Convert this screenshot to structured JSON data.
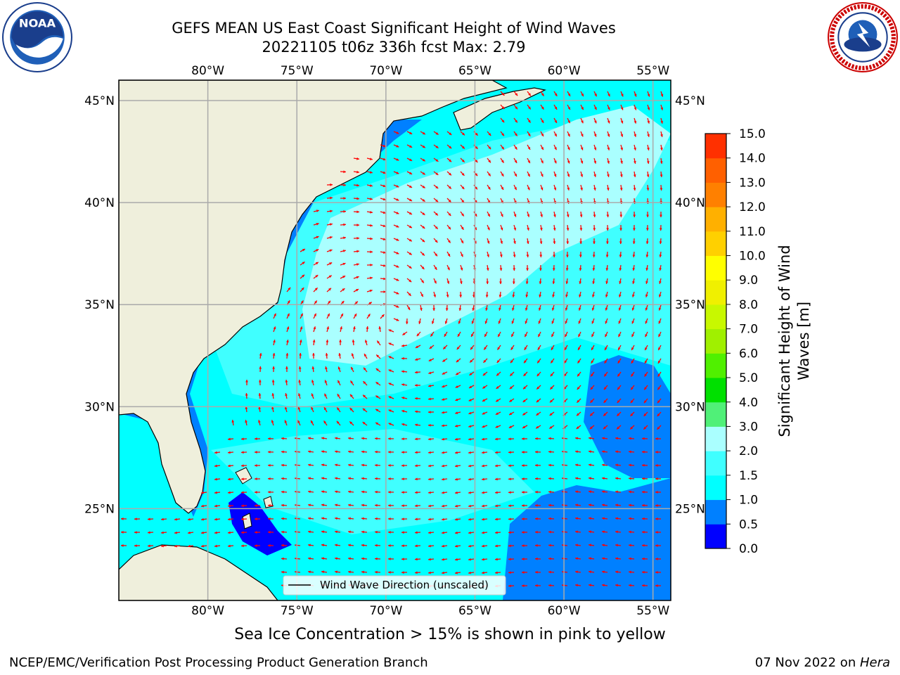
{
  "title": {
    "line1": "GEFS MEAN US East Coast Significant Height of Wind Waves",
    "line2": "20221105 t06z 336h fcst   Max: 2.79"
  },
  "logos": {
    "left": "noaa-logo",
    "left_text": "NOAA",
    "right": "nws-logo"
  },
  "map": {
    "lon_range": [
      -85,
      -54
    ],
    "lat_range": [
      20.5,
      46
    ],
    "lon_ticks": [
      -80,
      -75,
      -70,
      -65,
      -60,
      -55
    ],
    "lat_ticks": [
      25,
      30,
      35,
      40,
      45
    ],
    "lon_labels": [
      "80°W",
      "75°W",
      "70°W",
      "65°W",
      "60°W",
      "55°W"
    ],
    "lat_labels": [
      "25°N",
      "30°N",
      "35°N",
      "40°N",
      "45°N"
    ],
    "land_color": "#efefdc",
    "grid": true,
    "arrow_color": "#ff0000",
    "legend_label": "Wind Wave Direction (unscaled)"
  },
  "colorbar": {
    "ticks": [
      "0.0",
      "0.5",
      "1.0",
      "1.5",
      "2.0",
      "3.0",
      "4.0",
      "5.0",
      "6.0",
      "7.0",
      "8.0",
      "9.0",
      "10.0",
      "11.0",
      "12.0",
      "13.0",
      "14.0",
      "15.0"
    ],
    "colors": [
      "#0000ff",
      "#0080ff",
      "#00ffff",
      "#40ffff",
      "#aaffff",
      "#50f078",
      "#00e000",
      "#50f000",
      "#a0f000",
      "#c8f800",
      "#f0f000",
      "#ffff00",
      "#ffd000",
      "#ffb000",
      "#ff8000",
      "#ff6000",
      "#ff3000",
      "#ff0000"
    ],
    "label_line1": "Significant Height of Wind",
    "label_line2": "Waves [m]"
  },
  "footnote": "Sea Ice Concentration > 15% is shown in pink to yellow",
  "footer": {
    "left": "NCEP/EMC/Verification Post Processing Product Generation Branch",
    "right_date": "07 Nov 2022 on ",
    "right_host": "Hera"
  }
}
